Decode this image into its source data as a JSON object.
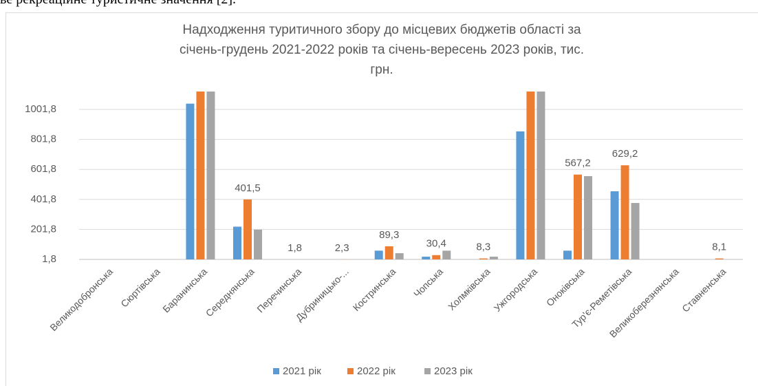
{
  "document_text": "ве рекреаційне туристичне значення [2].",
  "chart_data": {
    "type": "bar",
    "title": [
      "Надходження туритичного збору до місцевих бюджетів області за",
      "січень-грудень 2021-2022 років та січень-вересень 2023 років, тис.",
      "грн."
    ],
    "categories": [
      "Великодобронська",
      "Сюртівська",
      "Баранинська",
      "Середнянська",
      "Перечинська",
      "Дубриницько-...",
      "Костринська",
      "Чопська",
      "Холмківська",
      "Ужгородська",
      "Оноківська",
      "Тур'є-Реметівська",
      "Великоберезнянська",
      "Ставненська"
    ],
    "series": [
      {
        "name": "2021 рік",
        "color": "#5b9bd5",
        "values": [
          0,
          0,
          1040,
          220,
          0,
          0,
          60,
          20,
          0,
          855,
          60,
          456,
          0,
          0
        ]
      },
      {
        "name": "2022 рік",
        "color": "#ed7d31",
        "values": [
          0,
          0,
          1121,
          401.5,
          1.8,
          2.3,
          89.3,
          30.4,
          8.3,
          1121,
          567.2,
          629.2,
          0,
          8.1
        ],
        "value_labels": [
          null,
          null,
          null,
          "401,5",
          "1,8",
          "2,3",
          "89,3",
          "30,4",
          "8,3",
          null,
          "567,2",
          "629,2",
          null,
          "8,1"
        ]
      },
      {
        "name": "2023 рік",
        "color": "#a5a5a5",
        "values": [
          0,
          0,
          1121,
          200,
          0,
          0,
          43,
          60,
          20,
          1121,
          557,
          378,
          0,
          0
        ]
      }
    ],
    "ylim": [
      1.8,
      1121
    ],
    "yticks": [
      {
        "value": 1.8,
        "label": "1,8"
      },
      {
        "value": 201.8,
        "label": "201,8"
      },
      {
        "value": 401.8,
        "label": "401,8"
      },
      {
        "value": 601.8,
        "label": "601,8"
      },
      {
        "value": 801.8,
        "label": "801,8"
      },
      {
        "value": 1001.8,
        "label": "1001,8"
      }
    ],
    "grid": true,
    "legend": "bottom"
  }
}
